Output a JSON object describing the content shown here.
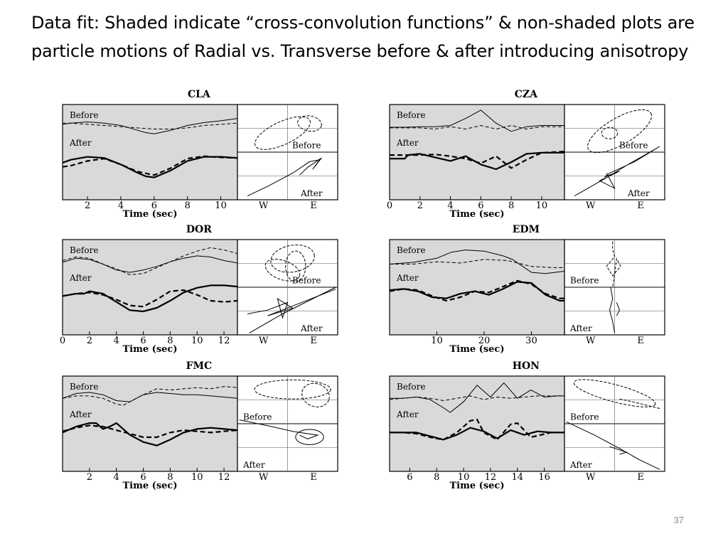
{
  "slide": {
    "title": "Data fit:  Shaded indicate “cross-convolution functions” & non-shaded plots are particle motions of  Radial vs. Transverse before & after introducing  anisotropy",
    "page_number": "37"
  },
  "colors": {
    "shade": "#d9d9d9",
    "ink": "#000000",
    "grid": "#555555",
    "page_number": "#8a8a8a"
  },
  "chart_data": [
    {
      "station": "CLA",
      "type": "line",
      "xlabel": "Time (sec)",
      "xlim": [
        0.5,
        11
      ],
      "xticks": [
        2,
        4,
        6,
        8,
        10
      ],
      "labels": {
        "before": "Before",
        "after": "After"
      },
      "pm_labels": {
        "west": "W",
        "east": "E",
        "before": "Before",
        "after": "After"
      },
      "series": [
        {
          "x": [
            0.5,
            1,
            2,
            3,
            4,
            5,
            5.5,
            6,
            7,
            8,
            9,
            10,
            11
          ],
          "y": [
            0.6,
            0.62,
            0.64,
            0.62,
            0.58,
            0.5,
            0.46,
            0.44,
            0.5,
            0.58,
            0.63,
            0.66,
            0.7
          ]
        },
        {
          "x": [
            0.5,
            1,
            2,
            3,
            4,
            5,
            6,
            7,
            8,
            9,
            10,
            11
          ],
          "y": [
            0.62,
            0.62,
            0.6,
            0.58,
            0.56,
            0.54,
            0.52,
            0.52,
            0.54,
            0.58,
            0.6,
            0.62
          ],
          "dashed": true
        },
        {
          "x": [
            0.5,
            1,
            2,
            3,
            4,
            5,
            5.5,
            6,
            7,
            8,
            9,
            10,
            11
          ],
          "y": [
            -0.05,
            0.0,
            0.05,
            0.03,
            -0.08,
            -0.22,
            -0.28,
            -0.3,
            -0.18,
            -0.02,
            0.05,
            0.05,
            0.03
          ],
          "bold": true
        },
        {
          "x": [
            0.5,
            1,
            2,
            3,
            4,
            5,
            6,
            7,
            8,
            9,
            10,
            11
          ],
          "y": [
            -0.12,
            -0.1,
            -0.02,
            0.02,
            -0.08,
            -0.2,
            -0.26,
            -0.14,
            0.02,
            0.06,
            0.04,
            0.03
          ],
          "bold": true,
          "dashed": true
        }
      ]
    },
    {
      "station": "CZA",
      "type": "line",
      "xlabel": "Time (sec)",
      "xlim": [
        0,
        11.5
      ],
      "xticks": [
        0,
        2,
        4,
        6,
        8,
        10
      ],
      "labels": {
        "before": "Before",
        "after": "After"
      },
      "pm_labels": {
        "west": "W",
        "east": "E",
        "before": "Before",
        "after": "After"
      },
      "series": [
        {
          "x": [
            0,
            1,
            2,
            3,
            4,
            5,
            6,
            7,
            8,
            9,
            10,
            11.5
          ],
          "y": [
            0.55,
            0.55,
            0.56,
            0.56,
            0.58,
            0.7,
            0.84,
            0.62,
            0.48,
            0.56,
            0.58,
            0.58
          ]
        },
        {
          "x": [
            0,
            1,
            2,
            3,
            4,
            5,
            6,
            7,
            8,
            9,
            10,
            11.5
          ],
          "y": [
            0.54,
            0.54,
            0.54,
            0.52,
            0.56,
            0.52,
            0.58,
            0.52,
            0.58,
            0.52,
            0.56,
            0.56
          ],
          "dashed": true
        },
        {
          "x": [
            0,
            1,
            1.2,
            2,
            3,
            4,
            5,
            6,
            7,
            8,
            9,
            10,
            11.5
          ],
          "y": [
            0.02,
            0.02,
            0.08,
            0.1,
            0.04,
            -0.02,
            0.06,
            -0.08,
            -0.16,
            -0.04,
            0.1,
            0.12,
            0.12
          ],
          "bold": true
        },
        {
          "x": [
            0,
            1,
            2,
            3,
            4,
            5,
            6,
            7,
            8,
            9,
            10,
            11.5
          ],
          "y": [
            0.08,
            0.08,
            0.08,
            0.09,
            0.06,
            0.02,
            -0.06,
            0.06,
            -0.14,
            0.0,
            0.12,
            0.14
          ],
          "bold": true,
          "dashed": true
        }
      ]
    },
    {
      "station": "DOR",
      "type": "line",
      "xlabel": "Time (sec)",
      "xlim": [
        0,
        13
      ],
      "xticks": [
        0,
        2,
        4,
        6,
        8,
        10,
        12
      ],
      "labels": {
        "before": "Before",
        "after": "After"
      },
      "pm_labels": {
        "west": "W",
        "east": "E",
        "before": "Before",
        "after": "After"
      },
      "series": [
        {
          "x": [
            0,
            1,
            2,
            3,
            4,
            5,
            6,
            7,
            8,
            9,
            10,
            11,
            12,
            13
          ],
          "y": [
            0.55,
            0.62,
            0.6,
            0.52,
            0.42,
            0.38,
            0.42,
            0.48,
            0.56,
            0.62,
            0.66,
            0.64,
            0.58,
            0.54
          ]
        },
        {
          "x": [
            0,
            1,
            2,
            3,
            4,
            5,
            6,
            7,
            8,
            9,
            10,
            11,
            12,
            13
          ],
          "y": [
            0.58,
            0.64,
            0.62,
            0.52,
            0.44,
            0.34,
            0.36,
            0.46,
            0.56,
            0.66,
            0.74,
            0.8,
            0.76,
            0.7
          ],
          "dashed": true
        },
        {
          "x": [
            0,
            1,
            1.6,
            2,
            3,
            4,
            5,
            6,
            7,
            8,
            9,
            10,
            11,
            12,
            13
          ],
          "y": [
            -0.02,
            0.02,
            0.02,
            0.06,
            0.02,
            -0.12,
            -0.26,
            -0.28,
            -0.22,
            -0.1,
            0.04,
            0.12,
            0.16,
            0.16,
            0.14
          ],
          "bold": true
        },
        {
          "x": [
            0,
            1,
            2,
            3,
            4,
            5,
            6,
            7,
            8,
            9,
            10,
            11,
            12,
            13
          ],
          "y": [
            -0.02,
            0.02,
            0.04,
            0.0,
            -0.08,
            -0.18,
            -0.2,
            -0.08,
            0.06,
            0.08,
            0.0,
            -0.1,
            -0.12,
            -0.1
          ],
          "bold": true,
          "dashed": true
        }
      ]
    },
    {
      "station": "EDM",
      "type": "line",
      "xlabel": "Time (sec)",
      "xlim": [
        0,
        37
      ],
      "xticks": [
        10,
        20,
        30
      ],
      "labels": {
        "before": "Before",
        "after": "After"
      },
      "pm_labels": {
        "west": "W",
        "east": "E",
        "before": "Before",
        "after": "After"
      },
      "series": [
        {
          "x": [
            0,
            5,
            10,
            13,
            16,
            20,
            24,
            26,
            30,
            33,
            37
          ],
          "y": [
            0.52,
            0.55,
            0.62,
            0.72,
            0.76,
            0.74,
            0.66,
            0.6,
            0.38,
            0.36,
            0.4
          ]
        },
        {
          "x": [
            0,
            5,
            10,
            15,
            20,
            25,
            30,
            35,
            37
          ],
          "y": [
            0.52,
            0.52,
            0.56,
            0.54,
            0.6,
            0.58,
            0.48,
            0.46,
            0.46
          ],
          "dashed": true
        },
        {
          "x": [
            0,
            3,
            6,
            9,
            12,
            15,
            18,
            21,
            24,
            27,
            30,
            33,
            36,
            37
          ],
          "y": [
            0.08,
            0.1,
            0.06,
            -0.04,
            -0.06,
            0.02,
            0.06,
            0.0,
            0.1,
            0.22,
            0.2,
            0.0,
            -0.1,
            -0.1
          ],
          "bold": true
        },
        {
          "x": [
            0,
            3,
            6,
            9,
            12,
            15,
            18,
            21,
            24,
            27,
            30,
            33,
            36,
            37
          ],
          "y": [
            0.06,
            0.1,
            0.08,
            -0.02,
            -0.1,
            -0.04,
            0.06,
            0.04,
            0.14,
            0.24,
            0.18,
            0.02,
            -0.06,
            -0.06
          ],
          "bold": true,
          "dashed": true
        }
      ]
    },
    {
      "station": "FMC",
      "type": "line",
      "xlabel": "Time (sec)",
      "xlim": [
        0,
        13
      ],
      "xticks": [
        2,
        4,
        6,
        8,
        10,
        12
      ],
      "labels": {
        "before": "Before",
        "after": "After"
      },
      "pm_labels": {
        "west": "W",
        "east": "E",
        "before": "Before",
        "after": "After"
      },
      "series": [
        {
          "x": [
            0,
            1,
            2,
            3,
            4,
            5,
            6,
            7,
            8,
            9,
            10,
            11,
            12,
            13
          ],
          "y": [
            0.56,
            0.64,
            0.66,
            0.62,
            0.52,
            0.5,
            0.62,
            0.66,
            0.64,
            0.62,
            0.62,
            0.6,
            0.58,
            0.56
          ]
        },
        {
          "x": [
            0,
            1,
            2,
            3,
            4,
            4.5,
            5,
            6,
            7,
            8,
            9,
            10,
            11,
            12,
            13
          ],
          "y": [
            0.56,
            0.6,
            0.6,
            0.56,
            0.46,
            0.44,
            0.5,
            0.62,
            0.72,
            0.7,
            0.72,
            0.74,
            0.72,
            0.76,
            0.74
          ],
          "dashed": true
        },
        {
          "x": [
            0,
            1,
            2,
            2.5,
            3,
            3.5,
            4,
            5,
            6,
            7,
            8,
            9,
            10,
            11,
            12,
            13
          ],
          "y": [
            -0.02,
            0.08,
            0.14,
            0.14,
            0.04,
            0.08,
            0.14,
            -0.06,
            -0.18,
            -0.24,
            -0.14,
            -0.02,
            0.04,
            0.06,
            0.04,
            0.02
          ],
          "bold": true
        },
        {
          "x": [
            0,
            1,
            2,
            3,
            4,
            5,
            6,
            7,
            8,
            9,
            10,
            11,
            12,
            13
          ],
          "y": [
            0.0,
            0.06,
            0.1,
            0.08,
            0.02,
            -0.04,
            -0.1,
            -0.1,
            -0.02,
            0.02,
            0.0,
            -0.02,
            0.0,
            0.02
          ],
          "bold": true,
          "dashed": true
        }
      ]
    },
    {
      "station": "HON",
      "type": "line",
      "xlabel": "Time (sec)",
      "xlim": [
        4.5,
        17.5
      ],
      "xticks": [
        6,
        8,
        10,
        12,
        14,
        16
      ],
      "labels": {
        "before": "Before",
        "after": "After"
      },
      "pm_labels": {
        "west": "W",
        "east": "E",
        "before": "Before",
        "after": "After"
      },
      "series": [
        {
          "x": [
            4.5,
            5.5,
            6.5,
            7.5,
            8.5,
            9,
            10,
            11,
            12,
            13,
            14,
            15,
            16,
            17,
            17.5
          ],
          "y": [
            0.56,
            0.56,
            0.58,
            0.54,
            0.4,
            0.32,
            0.5,
            0.78,
            0.58,
            0.82,
            0.56,
            0.7,
            0.58,
            0.6,
            0.6
          ]
        },
        {
          "x": [
            4.5,
            5.5,
            6.5,
            7.5,
            8.5,
            9.5,
            10.5,
            11.5,
            12.5,
            13.5,
            14.5,
            15.5,
            16.5,
            17.5
          ],
          "y": [
            0.54,
            0.56,
            0.58,
            0.56,
            0.52,
            0.56,
            0.6,
            0.54,
            0.58,
            0.56,
            0.58,
            0.6,
            0.6,
            0.6
          ],
          "dashed": true
        },
        {
          "x": [
            4.5,
            5.5,
            6.5,
            7.5,
            8.5,
            9.5,
            10.5,
            11.5,
            12.5,
            13.5,
            14.5,
            15.5,
            16.5,
            17.5
          ],
          "y": [
            -0.02,
            -0.02,
            -0.02,
            -0.08,
            -0.14,
            -0.06,
            0.06,
            0.0,
            -0.12,
            0.02,
            -0.06,
            0.0,
            -0.02,
            -0.02
          ],
          "bold": true
        },
        {
          "x": [
            4.5,
            5.5,
            6.5,
            7.5,
            8.5,
            9.5,
            10.5,
            11,
            11.5,
            12.5,
            13.5,
            14,
            15,
            16.5,
            17.5
          ],
          "y": [
            -0.02,
            -0.02,
            -0.04,
            -0.1,
            -0.14,
            -0.02,
            0.18,
            0.2,
            -0.02,
            -0.14,
            0.12,
            0.14,
            -0.1,
            -0.02,
            -0.02
          ],
          "bold": true,
          "dashed": true
        }
      ]
    }
  ]
}
